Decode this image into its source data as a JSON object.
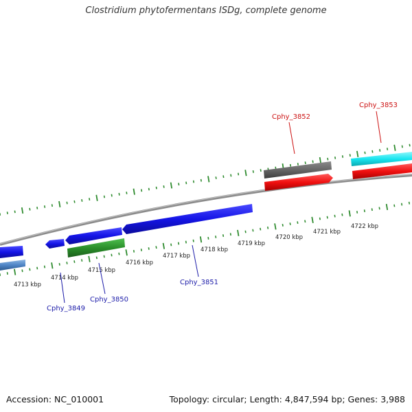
{
  "title": "Clostridium phytofermentans ISDg, complete genome",
  "footer": {
    "accession": "Accession: NC_010001",
    "info": "Topology: circular; Length: 4,847,594 bp; Genes: 3,988"
  },
  "colors": {
    "background": "#ffffff",
    "backbone": "#8c8c8c",
    "tick": "#2e8b2e",
    "blue_gene": "#1414e6",
    "green_gene": "#2a8f2a",
    "gray_gene": "#666666",
    "red_gene": "#f01010",
    "cyan_gene": "#19e6f0",
    "steel_gene": "#4f86c6",
    "label_blue": "#1a1aa8",
    "label_red": "#cc1111"
  },
  "kbp_ticks": [
    "4713 kbp",
    "4714 kbp",
    "4715 kbp",
    "4716 kbp",
    "4717 kbp",
    "4718 kbp",
    "4719 kbp",
    "4720 kbp",
    "4721 kbp",
    "4722 kbp"
  ],
  "gene_labels": [
    {
      "name": "Cphy_3849",
      "color": "blue"
    },
    {
      "name": "Cphy_3850",
      "color": "blue"
    },
    {
      "name": "Cphy_3851",
      "color": "blue"
    },
    {
      "name": "Cphy_3852",
      "color": "red"
    },
    {
      "name": "Cphy_3853",
      "color": "red"
    }
  ]
}
